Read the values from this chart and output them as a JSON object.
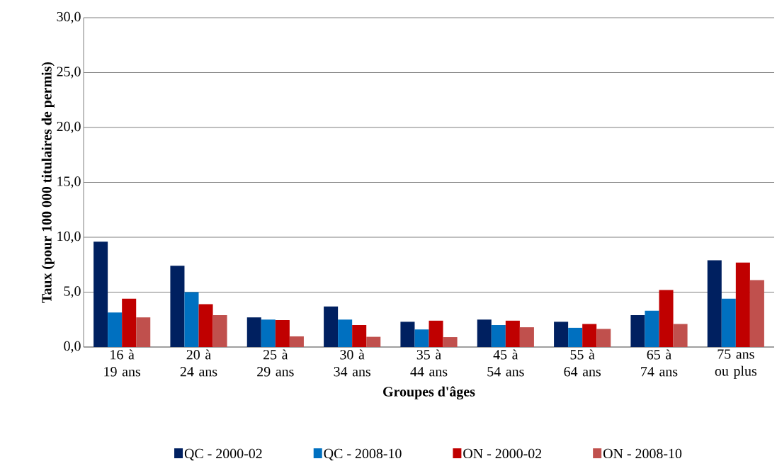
{
  "chart_data": {
    "type": "bar",
    "xlabel": "Groupes d'âges",
    "ylabel": "Taux (pour 100 000 titulaires de permis)",
    "categories": [
      "16 à 19 ans",
      "20 à 24 ans",
      "25 à 29 ans",
      "30 à 34 ans",
      "35 à 44 ans",
      "45 à 54 ans",
      "55 à 64 ans",
      "65 à 74 ans",
      "75 ans ou plus"
    ],
    "series": [
      {
        "name": "QC - 2000-02",
        "color": "#002060",
        "values": [
          9.6,
          7.4,
          2.7,
          3.7,
          2.3,
          2.5,
          2.3,
          2.9,
          7.9
        ]
      },
      {
        "name": "QC - 2008-10",
        "color": "#0070c0",
        "values": [
          3.15,
          5.0,
          2.5,
          2.5,
          1.6,
          2.0,
          1.75,
          3.3,
          4.4
        ]
      },
      {
        "name": "ON - 2000-02",
        "color": "#c00000",
        "values": [
          4.4,
          3.9,
          2.45,
          2.0,
          2.4,
          2.4,
          2.1,
          5.2,
          7.7
        ]
      },
      {
        "name": "ON - 2008-10",
        "color": "#c0504d",
        "values": [
          2.7,
          2.9,
          0.97,
          0.93,
          0.9,
          1.8,
          1.65,
          2.1,
          6.1
        ]
      }
    ],
    "ylim": [
      0,
      30
    ],
    "yticks": [
      {
        "value": 0,
        "label": "0,0"
      },
      {
        "value": 5,
        "label": "5,0"
      },
      {
        "value": 10,
        "label": "10,0"
      },
      {
        "value": 15,
        "label": "15,0"
      },
      {
        "value": 20,
        "label": "20,0"
      },
      {
        "value": 25,
        "label": "25,0"
      },
      {
        "value": 30,
        "label": "30,0"
      }
    ],
    "grid": "y",
    "legend": "bottom"
  }
}
